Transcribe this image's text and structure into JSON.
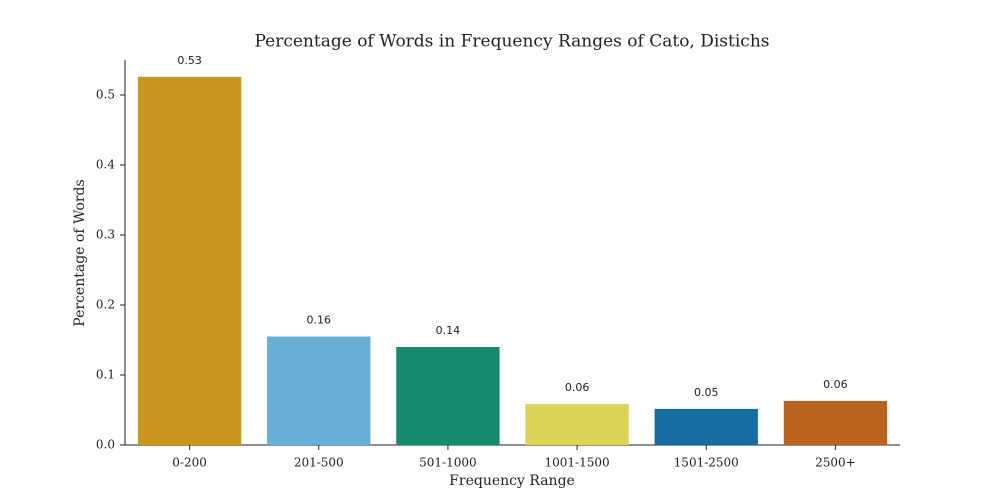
{
  "chart_data": {
    "type": "bar",
    "title": "Percentage of Words in Frequency Ranges of Cato, Distichs",
    "x_label": "Frequency Range",
    "y_label": "Percentage of Words",
    "categories": [
      "0-200",
      "201-500",
      "501-1000",
      "1001-1500",
      "1501-2500",
      "2500+"
    ],
    "values": [
      0.526,
      0.155,
      0.14,
      0.0587,
      0.0516,
      0.063
    ],
    "value_labels": [
      "0.53",
      "0.16",
      "0.14",
      "0.06",
      "0.05",
      "0.06"
    ],
    "colors": [
      "#c8951e",
      "#67afd7",
      "#168b6d",
      "#dcd458",
      "#176c9f",
      "#ba631c"
    ],
    "ylim": [
      0,
      0.55
    ],
    "yticks": [
      {
        "value": 0,
        "label": "0.0"
      },
      0.1,
      0.2,
      0.3,
      0.4,
      0.5
    ],
    "grid": false
  }
}
